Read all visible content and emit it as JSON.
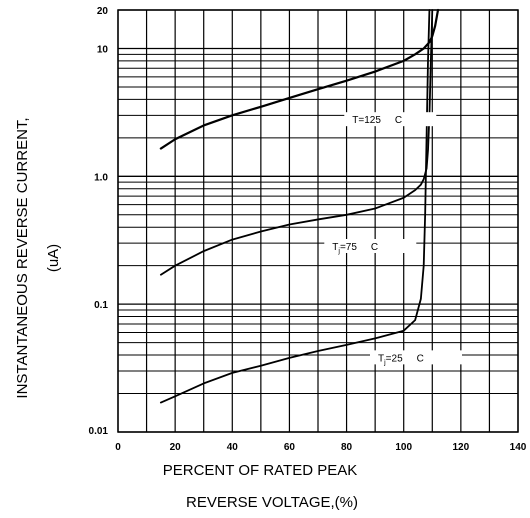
{
  "chart_data": {
    "type": "line",
    "title": "",
    "xlabel_line1": "PERCENT OF RATED PEAK",
    "xlabel_line2": "REVERSE VOLTAGE,(%)",
    "ylabel_line1": "INSTANTANEOUS REVERSE CURRENT,",
    "ylabel_line2": "(uA)",
    "xlim": [
      0,
      140
    ],
    "ylim": [
      0.01,
      20
    ],
    "yscale": "log",
    "grid": true,
    "x_ticks": [
      0,
      20,
      40,
      60,
      80,
      100,
      120,
      140
    ],
    "y_tick_labels": [
      {
        "value": 0.01,
        "label": "0.01"
      },
      {
        "value": 0.1,
        "label": "0.1"
      },
      {
        "value": 1,
        "label": "1.0"
      },
      {
        "value": 10,
        "label": "10"
      },
      {
        "value": 20,
        "label": "20"
      }
    ],
    "series": [
      {
        "name": "T=125 C",
        "label_parts": {
          "prefix": "T",
          "sub": "",
          "suffix": "=125",
          "unit": "C"
        },
        "label_at": {
          "x": 82,
          "y": 2.7
        },
        "x": [
          15,
          20,
          30,
          40,
          50,
          60,
          70,
          80,
          90,
          100,
          104,
          107,
          109,
          110,
          111,
          112
        ],
        "y": [
          1.65,
          1.95,
          2.5,
          3.0,
          3.5,
          4.1,
          4.8,
          5.6,
          6.6,
          8.0,
          9.0,
          10.0,
          11.2,
          12.5,
          15.0,
          20.0
        ]
      },
      {
        "name": "Tj=75 C",
        "label_parts": {
          "prefix": "T",
          "sub": "j",
          "suffix": "=75",
          "unit": "C"
        },
        "label_at": {
          "x": 75,
          "y": 0.275
        },
        "x": [
          15,
          20,
          30,
          40,
          50,
          60,
          70,
          80,
          90,
          100,
          104,
          106,
          107,
          108,
          108.5,
          109,
          109.5,
          110
        ],
        "y": [
          0.17,
          0.2,
          0.26,
          0.32,
          0.37,
          0.42,
          0.46,
          0.5,
          0.56,
          0.68,
          0.78,
          0.86,
          0.95,
          1.15,
          1.6,
          3.0,
          8.0,
          20.0
        ]
      },
      {
        "name": "Tj=25 C",
        "label_parts": {
          "prefix": "T",
          "sub": "j",
          "suffix": "=25",
          "unit": "C"
        },
        "label_at": {
          "x": 91,
          "y": 0.037
        },
        "x": [
          15,
          20,
          30,
          40,
          50,
          60,
          70,
          80,
          90,
          100,
          104,
          106,
          107,
          107.5,
          108,
          108.5,
          109
        ],
        "y": [
          0.017,
          0.019,
          0.024,
          0.029,
          0.033,
          0.038,
          0.043,
          0.048,
          0.054,
          0.062,
          0.075,
          0.11,
          0.2,
          0.5,
          2.0,
          8.0,
          20.0
        ]
      }
    ]
  }
}
